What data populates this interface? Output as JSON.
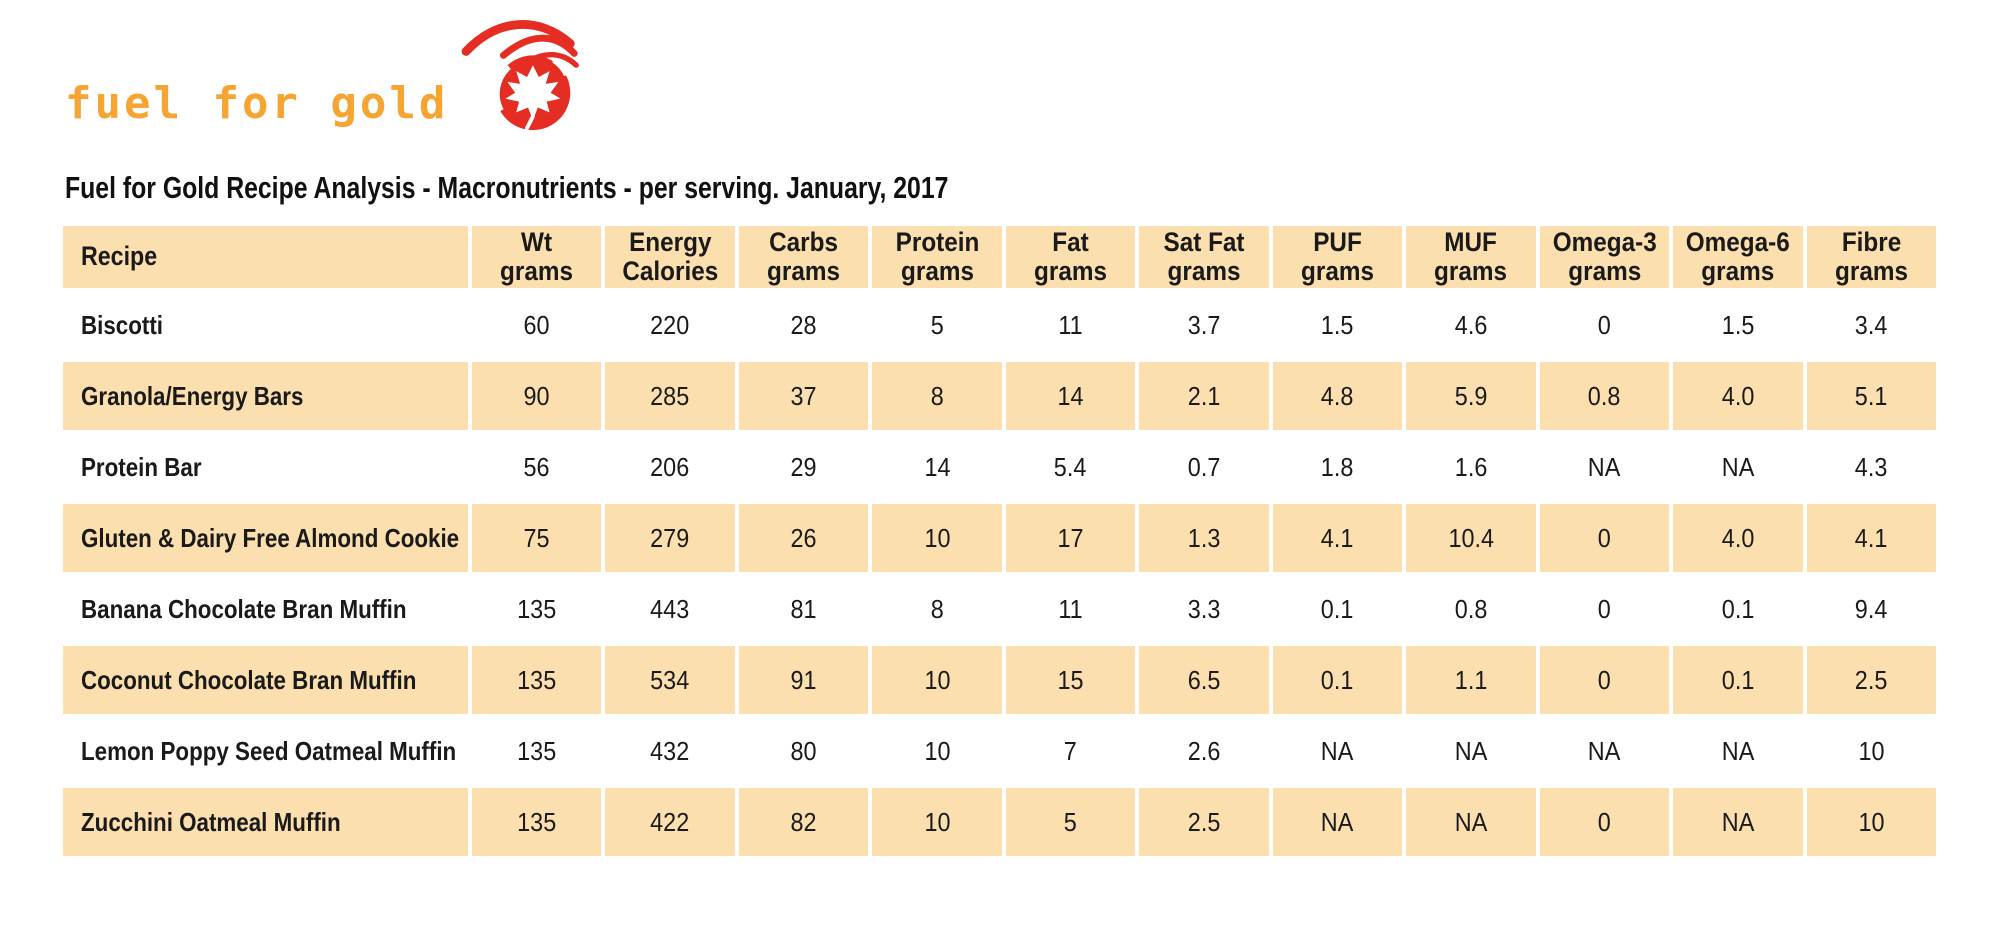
{
  "colors": {
    "gold": "#F6A532",
    "red": "#E62D23",
    "peach": "#FBDFAE",
    "ink": "#1A1A1A"
  },
  "logo": {
    "text": "fuel for gold",
    "icon": "maple-leaf-comet"
  },
  "title": "Fuel for Gold Recipe Analysis - Macronutrients - per serving. January, 2017",
  "table": {
    "columns": [
      {
        "label": "Recipe",
        "sub": ""
      },
      {
        "label": "Wt",
        "sub": "grams"
      },
      {
        "label": "Energy",
        "sub": "Calories"
      },
      {
        "label": "Carbs",
        "sub": "grams"
      },
      {
        "label": "Protein",
        "sub": "grams"
      },
      {
        "label": "Fat",
        "sub": "grams"
      },
      {
        "label": "Sat Fat",
        "sub": "grams"
      },
      {
        "label": "PUF",
        "sub": "grams"
      },
      {
        "label": "MUF",
        "sub": "grams"
      },
      {
        "label": "Omega-3",
        "sub": "grams"
      },
      {
        "label": "Omega-6",
        "sub": "grams"
      },
      {
        "label": "Fibre",
        "sub": "grams"
      }
    ],
    "rows": [
      {
        "recipe": "Biscotti",
        "values": [
          "60",
          "220",
          "28",
          "5",
          "11",
          "3.7",
          "1.5",
          "4.6",
          "0",
          "1.5",
          "3.4"
        ]
      },
      {
        "recipe": "Granola/Energy Bars",
        "values": [
          "90",
          "285",
          "37",
          "8",
          "14",
          "2.1",
          "4.8",
          "5.9",
          "0.8",
          "4.0",
          "5.1"
        ]
      },
      {
        "recipe": "Protein Bar",
        "values": [
          "56",
          "206",
          "29",
          "14",
          "5.4",
          "0.7",
          "1.8",
          "1.6",
          "NA",
          "NA",
          "4.3"
        ]
      },
      {
        "recipe": "Gluten & Dairy Free Almond Cookie",
        "values": [
          "75",
          "279",
          "26",
          "10",
          "17",
          "1.3",
          "4.1",
          "10.4",
          "0",
          "4.0",
          "4.1"
        ]
      },
      {
        "recipe": "Banana Chocolate Bran Muffin",
        "values": [
          "135",
          "443",
          "81",
          "8",
          "11",
          "3.3",
          "0.1",
          "0.8",
          "0",
          "0.1",
          "9.4"
        ]
      },
      {
        "recipe": "Coconut Chocolate Bran Muffin",
        "values": [
          "135",
          "534",
          "91",
          "10",
          "15",
          "6.5",
          "0.1",
          "1.1",
          "0",
          "0.1",
          "2.5"
        ]
      },
      {
        "recipe": "Lemon Poppy Seed Oatmeal Muffin",
        "values": [
          "135",
          "432",
          "80",
          "10",
          "7",
          "2.6",
          "NA",
          "NA",
          "NA",
          "NA",
          "10"
        ]
      },
      {
        "recipe": "Zucchini Oatmeal Muffin",
        "values": [
          "135",
          "422",
          "82",
          "10",
          "5",
          "2.5",
          "NA",
          "NA",
          "0",
          "NA",
          "10"
        ]
      }
    ]
  }
}
